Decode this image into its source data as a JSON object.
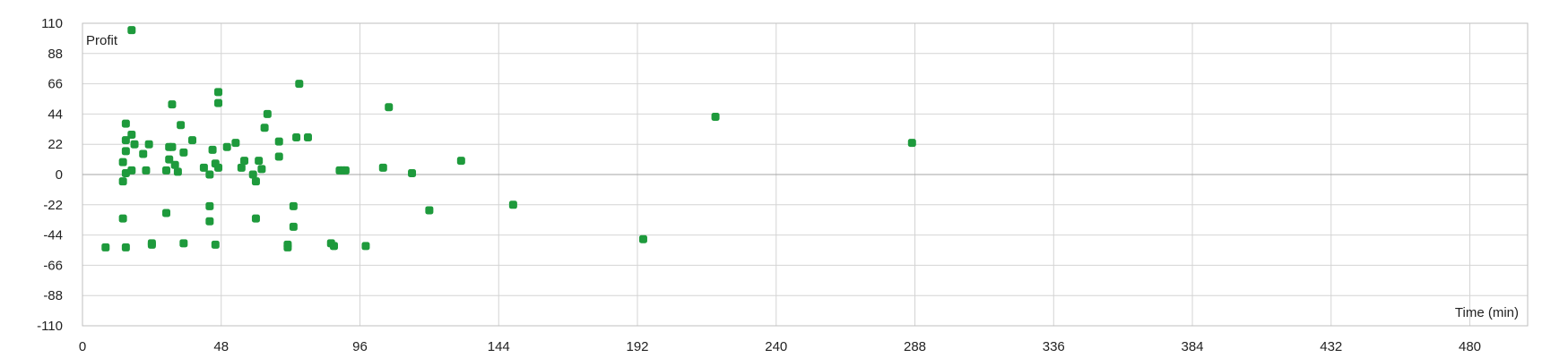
{
  "chart_data": {
    "type": "scatter",
    "title": "",
    "xlabel": "Time (min)",
    "ylabel": "Profit",
    "xlim": [
      0,
      500
    ],
    "ylim": [
      -110,
      110
    ],
    "xticks": [
      0,
      48,
      96,
      144,
      192,
      240,
      288,
      336,
      384,
      432,
      480
    ],
    "yticks": [
      -110,
      -88,
      -66,
      -44,
      -22,
      0,
      22,
      44,
      66,
      88,
      110
    ],
    "grid": true,
    "legend": "none",
    "colors": {
      "point": "#1e9a3c",
      "grid": "#d4d4d4",
      "zero_line": "#a6a6a6",
      "frame": "#bfbfbf"
    },
    "points": [
      [
        17,
        105
      ],
      [
        8,
        -53
      ],
      [
        14,
        -5
      ],
      [
        14,
        9
      ],
      [
        14,
        -32
      ],
      [
        15,
        37
      ],
      [
        15,
        25
      ],
      [
        15,
        1
      ],
      [
        15,
        17
      ],
      [
        15,
        -53
      ],
      [
        17,
        3
      ],
      [
        17,
        29
      ],
      [
        18,
        22
      ],
      [
        21,
        15
      ],
      [
        22,
        3
      ],
      [
        23,
        22
      ],
      [
        24,
        -50
      ],
      [
        24,
        -51
      ],
      [
        29,
        3
      ],
      [
        29,
        -28
      ],
      [
        30,
        20
      ],
      [
        30,
        11
      ],
      [
        31,
        51
      ],
      [
        31,
        20
      ],
      [
        32,
        7
      ],
      [
        33,
        2
      ],
      [
        34,
        36
      ],
      [
        35,
        16
      ],
      [
        35,
        -50
      ],
      [
        38,
        25
      ],
      [
        42,
        5
      ],
      [
        44,
        0
      ],
      [
        44,
        -23
      ],
      [
        44,
        -34
      ],
      [
        45,
        18
      ],
      [
        46,
        8
      ],
      [
        46,
        -51
      ],
      [
        47,
        60
      ],
      [
        47,
        52
      ],
      [
        47,
        5
      ],
      [
        50,
        20
      ],
      [
        53,
        23
      ],
      [
        55,
        5
      ],
      [
        56,
        10
      ],
      [
        59,
        0
      ],
      [
        60,
        -5
      ],
      [
        60,
        -32
      ],
      [
        61,
        10
      ],
      [
        62,
        4
      ],
      [
        63,
        34
      ],
      [
        64,
        44
      ],
      [
        68,
        13
      ],
      [
        68,
        24
      ],
      [
        71,
        -51
      ],
      [
        71,
        -53
      ],
      [
        73,
        -23
      ],
      [
        73,
        -38
      ],
      [
        74,
        27
      ],
      [
        75,
        66
      ],
      [
        78,
        27
      ],
      [
        86,
        -50
      ],
      [
        87,
        -52
      ],
      [
        89,
        3
      ],
      [
        90,
        3
      ],
      [
        91,
        3
      ],
      [
        98,
        -52
      ],
      [
        104,
        5
      ],
      [
        106,
        49
      ],
      [
        114,
        1
      ],
      [
        120,
        -26
      ],
      [
        131,
        10
      ],
      [
        149,
        -22
      ],
      [
        194,
        -47
      ],
      [
        219,
        42
      ],
      [
        287,
        23
      ]
    ]
  }
}
